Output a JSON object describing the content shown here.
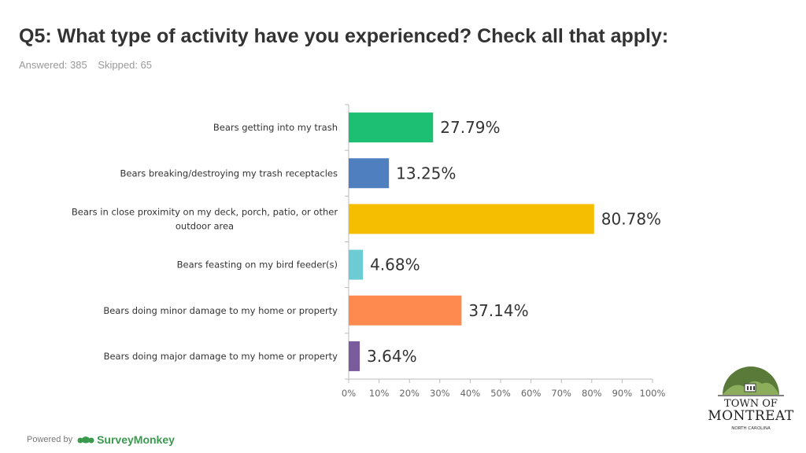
{
  "title": "Q5: What type of activity have you experienced? Check all that apply:",
  "answered": "Answered: 385",
  "skipped": "Skipped: 65",
  "footer": {
    "powered_by": "Powered by",
    "brand": "SurveyMonkey"
  },
  "logo": {
    "line1": "TOWN OF",
    "line2": "MONTREAT",
    "line3": "NORTH CAROLINA"
  },
  "chart_data": {
    "type": "bar",
    "orientation": "horizontal",
    "title": "Q5: What type of activity have you experienced? Check all that apply:",
    "categories": [
      [
        "Bears getting into my trash"
      ],
      [
        "Bears breaking/destroying my trash receptacles"
      ],
      [
        "Bears in close proximity on my deck, porch, patio, or other",
        "outdoor area"
      ],
      [
        "Bears feasting on my bird feeder(s)"
      ],
      [
        "Bears doing minor damage to my home or property"
      ],
      [
        "Bears doing major damage to my home or property"
      ]
    ],
    "values": [
      27.79,
      13.25,
      80.78,
      4.68,
      37.14,
      3.64
    ],
    "value_labels": [
      "27.79%",
      "13.25%",
      "80.78%",
      "4.68%",
      "37.14%",
      "3.64%"
    ],
    "colors": [
      "#1dbf73",
      "#4f7fbf",
      "#f5be00",
      "#6ccbd3",
      "#ff8a50",
      "#7a5c9e"
    ],
    "xlim": [
      0,
      100
    ],
    "ticks": [
      0,
      10,
      20,
      30,
      40,
      50,
      60,
      70,
      80,
      90,
      100
    ],
    "tick_labels": [
      "0%",
      "10%",
      "20%",
      "30%",
      "40%",
      "50%",
      "60%",
      "70%",
      "80%",
      "90%",
      "100%"
    ],
    "grid": false,
    "xlabel": "",
    "ylabel": ""
  }
}
